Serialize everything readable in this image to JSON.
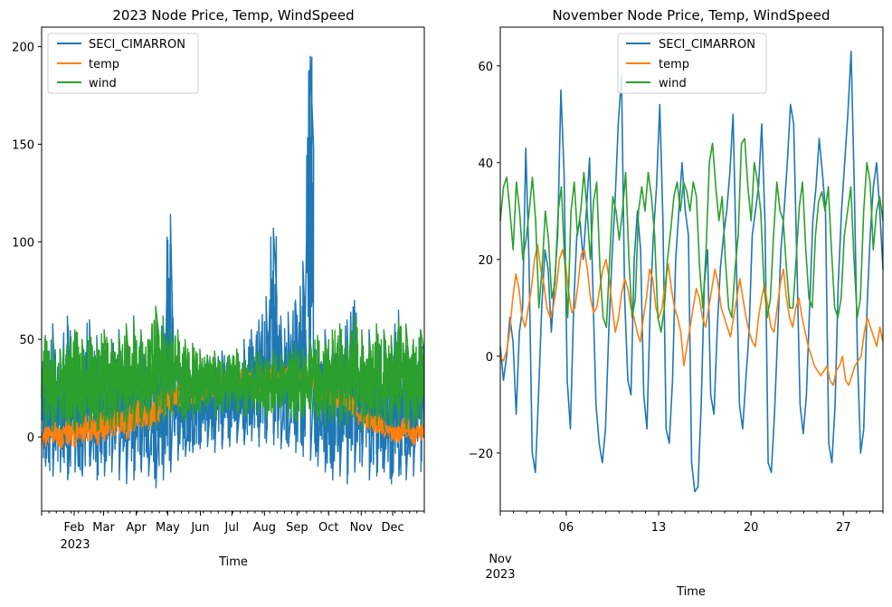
{
  "figure": {
    "left": {
      "title": "2023 Node Price, Temp, WindSpeed",
      "xlabel": "Time",
      "year_label": "2023",
      "yticks": [
        "0",
        "50",
        "100",
        "150",
        "200"
      ],
      "months": [
        "Feb",
        "Mar",
        "Apr",
        "May",
        "Jun",
        "Jul",
        "Aug",
        "Sep",
        "Oct",
        "Nov",
        "Dec"
      ],
      "legend": [
        "SECI_CIMARRON",
        "temp",
        "wind"
      ]
    },
    "right": {
      "title": "November Node Price, Temp, WindSpeed",
      "xlabel": "Time",
      "month_label": "Nov",
      "year_label": "2023",
      "yticks": [
        "−20",
        "0",
        "20",
        "40",
        "60"
      ],
      "days": [
        "06",
        "13",
        "20",
        "27"
      ],
      "legend": [
        "SECI_CIMARRON",
        "temp",
        "wind"
      ]
    }
  },
  "chart_data": [
    {
      "type": "line",
      "title": "2023 Node Price, Temp, WindSpeed",
      "xlabel": "Time",
      "ylabel": "",
      "xlim": [
        "2023-01-01",
        "2023-12-31"
      ],
      "ylim": [
        -38,
        210
      ],
      "grid": false,
      "legend_position": "top-left",
      "series": [
        {
          "name": "SECI_CIMARRON",
          "color": "#1f77b4",
          "resolution": "weekly",
          "low": [
            -15,
            -20,
            -18,
            -22,
            -18,
            -20,
            -15,
            -22,
            -20,
            -18,
            -22,
            -24,
            -22,
            -18,
            -20,
            -26,
            -22,
            -18,
            -12,
            -10,
            -8,
            -6,
            -5,
            -8,
            -6,
            -5,
            -3,
            -4,
            -2,
            -5,
            -3,
            -4,
            -6,
            -5,
            -8,
            -10,
            -12,
            -15,
            -18,
            -22,
            -20,
            -24,
            -18,
            -15,
            -22,
            -20,
            -18,
            -24,
            -20,
            -22,
            -20,
            -18
          ],
          "high": [
            48,
            58,
            45,
            62,
            50,
            48,
            60,
            52,
            44,
            50,
            55,
            48,
            62,
            52,
            45,
            50,
            60,
            114,
            42,
            38,
            40,
            35,
            42,
            38,
            44,
            40,
            45,
            50,
            55,
            60,
            72,
            107,
            62,
            64,
            70,
            90,
            195,
            50,
            55,
            45,
            50,
            60,
            70,
            45,
            55,
            48,
            52,
            40,
            65,
            48,
            42,
            55
          ]
        },
        {
          "name": "temp",
          "color": "#ff7f0e",
          "resolution": "weekly",
          "low": [
            -5,
            -3,
            -6,
            -4,
            -5,
            -3,
            -2,
            -4,
            -2,
            0,
            2,
            -1,
            3,
            5,
            4,
            6,
            10,
            12,
            14,
            15,
            17,
            18,
            19,
            20,
            21,
            22,
            22,
            23,
            24,
            22,
            24,
            25,
            24,
            25,
            23,
            26,
            24,
            20,
            18,
            16,
            14,
            12,
            10,
            6,
            4,
            2,
            0,
            -2,
            -3,
            0,
            -4,
            -2
          ],
          "high": [
            6,
            8,
            5,
            10,
            8,
            9,
            12,
            10,
            14,
            12,
            16,
            14,
            18,
            20,
            18,
            22,
            24,
            26,
            28,
            28,
            30,
            30,
            31,
            32,
            33,
            33,
            34,
            35,
            35,
            34,
            36,
            37,
            36,
            37,
            35,
            36,
            34,
            32,
            30,
            28,
            26,
            24,
            22,
            16,
            14,
            12,
            10,
            8,
            6,
            10,
            6,
            8
          ]
        },
        {
          "name": "wind",
          "color": "#2ca02c",
          "resolution": "weekly",
          "low": [
            5,
            3,
            4,
            6,
            2,
            5,
            4,
            3,
            6,
            4,
            5,
            3,
            4,
            6,
            5,
            4,
            8,
            10,
            12,
            8,
            10,
            12,
            14,
            10,
            12,
            14,
            12,
            10,
            14,
            12,
            10,
            12,
            14,
            10,
            8,
            10,
            12,
            8,
            6,
            8,
            5,
            6,
            8,
            4,
            5,
            6,
            4,
            5,
            6,
            4,
            5,
            6
          ],
          "high": [
            52,
            50,
            45,
            48,
            55,
            50,
            52,
            48,
            55,
            50,
            52,
            58,
            60,
            55,
            50,
            67,
            62,
            55,
            55,
            50,
            48,
            45,
            42,
            44,
            40,
            42,
            45,
            40,
            42,
            44,
            40,
            45,
            42,
            44,
            48,
            45,
            50,
            52,
            48,
            55,
            58,
            50,
            62,
            55,
            50,
            58,
            55,
            52,
            60,
            58,
            50,
            55
          ]
        }
      ]
    },
    {
      "type": "line",
      "title": "November Node Price, Temp, WindSpeed",
      "xlabel": "Time",
      "ylabel": "",
      "xlim": [
        "2023-11-01",
        "2023-11-30"
      ],
      "ylim": [
        -32,
        68
      ],
      "grid": false,
      "legend_position": "top-center",
      "series": [
        {
          "name": "SECI_CIMARRON",
          "color": "#1f77b4",
          "resolution": "6-hourly",
          "values": [
            2,
            -5,
            0,
            8,
            3,
            -12,
            5,
            10,
            43,
            20,
            -20,
            -24,
            -8,
            10,
            22,
            18,
            5,
            15,
            25,
            55,
            38,
            -5,
            -15,
            10,
            25,
            28,
            20,
            30,
            41,
            15,
            -10,
            -18,
            -22,
            -15,
            5,
            20,
            32,
            48,
            58,
            12,
            -5,
            -8,
            20,
            30,
            22,
            -8,
            -15,
            10,
            25,
            35,
            52,
            28,
            -15,
            -18,
            -5,
            20,
            30,
            40,
            30,
            25,
            -22,
            -28,
            -27,
            -10,
            15,
            22,
            -8,
            -12,
            5,
            18,
            25,
            30,
            38,
            50,
            20,
            -10,
            -15,
            -5,
            5,
            25,
            30,
            35,
            48,
            28,
            -22,
            -24,
            -12,
            5,
            22,
            30,
            40,
            52,
            48,
            20,
            -10,
            -16,
            -8,
            10,
            28,
            35,
            45,
            38,
            30,
            -18,
            -22,
            -10,
            15,
            30,
            40,
            50,
            63,
            35,
            0,
            -20,
            -15,
            10,
            25,
            35,
            40,
            30,
            18
          ]
        },
        {
          "name": "temp",
          "color": "#ff7f0e",
          "resolution": "6-hourly",
          "values": [
            0,
            -1,
            1,
            5,
            12,
            17,
            14,
            8,
            6,
            10,
            14,
            20,
            23,
            18,
            15,
            10,
            8,
            10,
            14,
            20,
            22,
            19,
            13,
            9,
            10,
            15,
            21,
            22,
            18,
            12,
            9,
            10,
            14,
            18,
            20,
            16,
            10,
            5,
            8,
            13,
            16,
            14,
            10,
            8,
            5,
            3,
            8,
            12,
            18,
            16,
            10,
            8,
            10,
            15,
            19,
            14,
            10,
            8,
            5,
            -2,
            2,
            6,
            10,
            14,
            12,
            8,
            6,
            10,
            14,
            18,
            15,
            10,
            8,
            6,
            4,
            8,
            12,
            16,
            12,
            8,
            5,
            3,
            2,
            8,
            12,
            15,
            10,
            6,
            5,
            10,
            15,
            18,
            12,
            8,
            6,
            10,
            12,
            8,
            5,
            2,
            0,
            -2,
            -3,
            -4,
            -3,
            -2,
            -5,
            -6,
            -3,
            -2,
            0,
            -5,
            -6,
            -4,
            -2,
            -1,
            0,
            5,
            8,
            6,
            4,
            2,
            6,
            3
          ]
        },
        {
          "name": "wind",
          "color": "#2ca02c",
          "resolution": "6-hourly",
          "values": [
            28,
            35,
            37,
            30,
            22,
            36,
            30,
            20,
            24,
            30,
            37,
            28,
            10,
            18,
            30,
            24,
            12,
            15,
            30,
            35,
            20,
            8,
            30,
            36,
            25,
            30,
            38,
            30,
            20,
            32,
            36,
            18,
            8,
            6,
            20,
            33,
            30,
            24,
            30,
            38,
            20,
            8,
            12,
            30,
            35,
            30,
            38,
            33,
            25,
            8,
            5,
            10,
            20,
            26,
            33,
            36,
            30,
            36,
            34,
            30,
            36,
            33,
            18,
            10,
            22,
            40,
            44,
            35,
            28,
            33,
            20,
            10,
            8,
            18,
            25,
            44,
            45,
            35,
            28,
            40,
            36,
            30,
            15,
            8,
            12,
            25,
            36,
            30,
            28,
            18,
            10,
            10,
            20,
            31,
            36,
            22,
            12,
            10,
            25,
            32,
            34,
            30,
            35,
            22,
            10,
            8,
            12,
            25,
            30,
            35,
            20,
            8,
            12,
            30,
            40,
            36,
            22,
            30,
            33,
            28
          ]
        }
      ]
    }
  ]
}
